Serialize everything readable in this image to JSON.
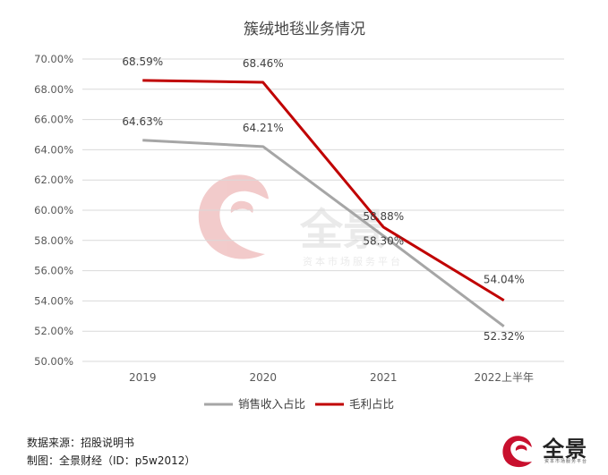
{
  "chart_data": {
    "type": "line",
    "title": "簇绒地毯业务情况",
    "categories": [
      "2019",
      "2020",
      "2021",
      "2022上半年"
    ],
    "y_ticks": [
      "70.00%",
      "68.00%",
      "66.00%",
      "64.00%",
      "62.00%",
      "60.00%",
      "58.00%",
      "56.00%",
      "54.00%",
      "52.00%",
      "50.00%"
    ],
    "ylim": [
      50,
      70
    ],
    "grid": true,
    "legend_position": "bottom",
    "series": [
      {
        "name": "销售收入占比",
        "values": [
          64.63,
          64.21,
          58.3,
          52.32
        ],
        "labels": [
          "64.63%",
          "64.21%",
          "58.30%",
          "52.32%"
        ],
        "color": "#A6A6A6"
      },
      {
        "name": "毛利占比",
        "values": [
          68.59,
          68.46,
          58.88,
          54.04
        ],
        "labels": [
          "68.59%",
          "68.46%",
          "58.88%",
          "54.04%"
        ],
        "color": "#C00000"
      }
    ]
  },
  "watermark": {
    "name": "全景",
    "tagline": "资本市场服务平台",
    "color": "#E8A0A0"
  },
  "footer": {
    "source": "数据来源：招股说明书",
    "credit": "制图：全景财经（ID：p5w2012）"
  },
  "logo": {
    "name": "全景",
    "tagline": "资本市场服务平台",
    "icon": "p5w-swirl-logo-icon",
    "color": "#C8102E"
  }
}
